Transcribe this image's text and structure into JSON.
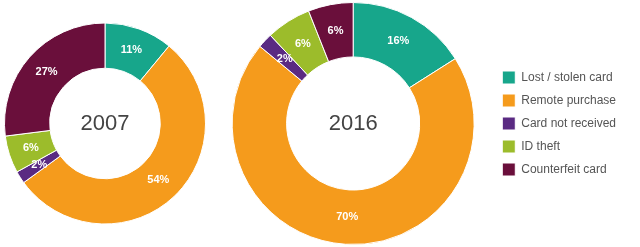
{
  "chart_data": [
    {
      "type": "doughnut",
      "title": "2007",
      "categories": [
        "Lost / stolen card",
        "Remote purchase",
        "Card not received",
        "ID theft",
        "Counterfeit card"
      ],
      "values": [
        11,
        54,
        2,
        6,
        27
      ],
      "value_labels": [
        "11%",
        "54%",
        "2%",
        "6%",
        "27%"
      ],
      "colors": [
        "#17a68b",
        "#f59b1c",
        "#5a2a82",
        "#9cbc2b",
        "#6a0f3b"
      ],
      "data_labels": true
    },
    {
      "type": "doughnut",
      "title": "2016",
      "categories": [
        "Lost / stolen card",
        "Remote purchase",
        "Card not received",
        "ID theft",
        "Counterfeit card"
      ],
      "values": [
        16,
        70,
        2,
        6,
        6
      ],
      "value_labels": [
        "16%",
        "70%",
        "2%",
        "6%",
        "6%"
      ],
      "colors": [
        "#17a68b",
        "#f59b1c",
        "#5a2a82",
        "#9cbc2b",
        "#6a0f3b"
      ],
      "data_labels": true,
      "legend": "right"
    }
  ]
}
